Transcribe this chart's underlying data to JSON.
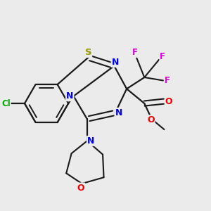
{
  "background_color": "#ebebeb",
  "bond_color": "#1a1a1a",
  "atom_colors": {
    "S": "#999900",
    "N": "#0000ee",
    "O": "#ee0000",
    "Cl": "#00aa00",
    "F": "#dd00dd",
    "C": "#1a1a1a"
  },
  "figsize": [
    3.0,
    3.0
  ],
  "dpi": 100
}
